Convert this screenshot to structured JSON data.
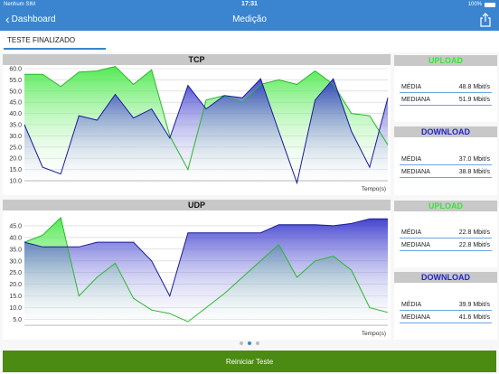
{
  "status_bar": {
    "carrier": "Nenhum SIM",
    "time": "17:31",
    "battery": "100%"
  },
  "nav": {
    "back_label": "Dashboard",
    "title": "Medição"
  },
  "tab": {
    "label": "TESTE FINALIZADO"
  },
  "colors": {
    "accent": "#3a84d0",
    "upload": "#35e635",
    "download": "#2424c8",
    "button": "#4b8a13"
  },
  "tcp": {
    "title": "TCP",
    "upload_header": "UPLOAD",
    "upload": {
      "media_label": "MÉDIA",
      "media_value": "48.8 Mbit/s",
      "mediana_label": "MEDIANA",
      "mediana_value": "51.9 Mbit/s"
    },
    "download_header": "DOWNLOAD",
    "download": {
      "media_label": "MÉDIA",
      "media_value": "37.0 Mbit/s",
      "mediana_label": "MEDIANA",
      "mediana_value": "38.8 Mbit/s"
    }
  },
  "udp": {
    "title": "UDP",
    "upload_header": "UPLOAD",
    "upload": {
      "media_label": "MÉDIA",
      "media_value": "22.8 Mbit/s",
      "mediana_label": "MEDIANA",
      "mediana_value": "22.8 Mbit/s"
    },
    "download_header": "DOWNLOAD",
    "download": {
      "media_label": "MÉDIA",
      "media_value": "39.9 Mbit/s",
      "mediana_label": "MEDIANA",
      "mediana_value": "41.6 Mbit/s"
    }
  },
  "pagination": {
    "count": 3,
    "active": 1
  },
  "restart_label": "Reiniciar Teste",
  "chart_data": [
    {
      "type": "area",
      "title": "TCP",
      "xlabel": "Tempo(s)",
      "ylabel": "",
      "ylim": [
        10,
        60
      ],
      "yticks": [
        "60.0",
        "55.0",
        "50.0",
        "45.0",
        "40.0",
        "35.0",
        "30.0",
        "25.0",
        "20.0",
        "15.0",
        "10.0"
      ],
      "grid": true,
      "series": [
        {
          "color": "#35e635",
          "values": [
            57.5,
            57.5,
            52,
            58.5,
            59,
            61,
            53,
            59.5,
            30,
            15,
            46,
            48,
            45,
            53,
            55,
            53,
            59,
            53,
            40,
            39,
            26
          ]
        },
        {
          "color": "#2424c8",
          "values": [
            35,
            16,
            13,
            39,
            37,
            48.5,
            38,
            42,
            29,
            52.5,
            42,
            48,
            47,
            55.5,
            32,
            9,
            46,
            55.5,
            32,
            16,
            47
          ]
        }
      ]
    },
    {
      "type": "area",
      "title": "UDP",
      "xlabel": "Tempo(s)",
      "ylabel": "",
      "ylim": [
        2.5,
        50
      ],
      "yticks": [
        "45.0",
        "40.0",
        "35.0",
        "30.0",
        "25.0",
        "20.0",
        "15.0",
        "10.0",
        "5.0"
      ],
      "grid": true,
      "series": [
        {
          "color": "#35e635",
          "values": [
            38,
            41,
            48.5,
            15,
            23,
            29,
            14,
            9,
            7.5,
            4,
            10,
            16,
            23,
            30,
            37,
            23,
            30,
            32,
            26,
            10,
            8
          ]
        },
        {
          "color": "#2424c8",
          "values": [
            38,
            36,
            36,
            36,
            38,
            38,
            38,
            30,
            15,
            42,
            42,
            42,
            42,
            42,
            45.5,
            45.5,
            45.5,
            45,
            46,
            48,
            48
          ]
        }
      ]
    }
  ]
}
